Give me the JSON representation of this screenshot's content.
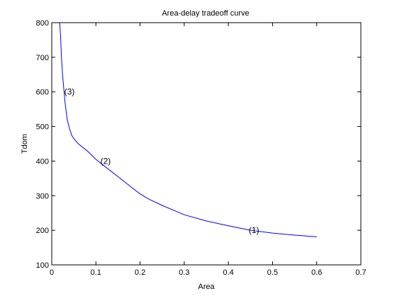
{
  "chart_data": {
    "type": "line",
    "title": "Area-delay tradeoff curve",
    "xlabel": "Area",
    "ylabel": "Tdom",
    "xlim": [
      0,
      0.7
    ],
    "ylim": [
      100,
      800
    ],
    "xticks": [
      0,
      0.1,
      0.2,
      0.3,
      0.4,
      0.5,
      0.6,
      0.7
    ],
    "yticks": [
      100,
      200,
      300,
      400,
      500,
      600,
      700,
      800
    ],
    "xtick_labels": [
      "0",
      "0.1",
      "0.2",
      "0.3",
      "0.4",
      "0.5",
      "0.6",
      "0.7"
    ],
    "ytick_labels": [
      "100",
      "200",
      "300",
      "400",
      "500",
      "600",
      "700",
      "800"
    ],
    "grid": false,
    "series": [
      {
        "color": "#0000ff",
        "x": [
          0.018,
          0.02,
          0.022,
          0.025,
          0.028,
          0.03,
          0.035,
          0.04,
          0.045,
          0.05,
          0.06,
          0.08,
          0.1,
          0.12,
          0.15,
          0.18,
          0.2,
          0.22,
          0.25,
          0.3,
          0.35,
          0.4,
          0.45,
          0.5,
          0.55,
          0.6
        ],
        "y": [
          800,
          760,
          700,
          640,
          600,
          570,
          520,
          495,
          475,
          465,
          450,
          430,
          405,
          385,
          355,
          325,
          305,
          290,
          272,
          245,
          227,
          213,
          200,
          192,
          186,
          181
        ]
      }
    ],
    "annotations": [
      {
        "text": "(3)",
        "x": 0.04,
        "y": 600
      },
      {
        "text": "(2)",
        "x": 0.122,
        "y": 400
      },
      {
        "text": "(1)",
        "x": 0.458,
        "y": 200
      }
    ]
  }
}
